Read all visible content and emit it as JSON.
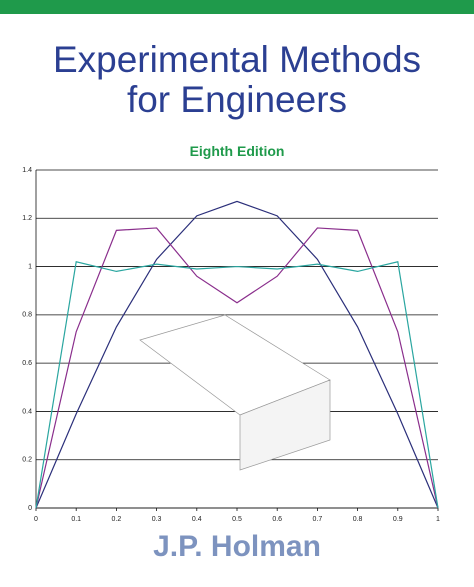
{
  "cover": {
    "title_line1": "Experimental Methods",
    "title_line2": "for Engineers",
    "edition": "Eighth Edition",
    "author": "J.P. Holman"
  },
  "chart_data": {
    "type": "line",
    "x": [
      0,
      0.1,
      0.2,
      0.3,
      0.4,
      0.5,
      0.6,
      0.7,
      0.8,
      0.9,
      1
    ],
    "series": [
      {
        "color": "#2b2f7a",
        "values": [
          0,
          0.39,
          0.75,
          1.03,
          1.21,
          1.27,
          1.21,
          1.03,
          0.75,
          0.39,
          0
        ]
      },
      {
        "color": "#8a2e8c",
        "values": [
          0,
          0.73,
          1.15,
          1.16,
          0.96,
          0.85,
          0.96,
          1.16,
          1.15,
          0.73,
          0
        ]
      },
      {
        "color": "#2aa6a0",
        "values": [
          0,
          1.02,
          0.98,
          1.01,
          0.99,
          1,
          0.99,
          1.01,
          0.98,
          1.02,
          0
        ]
      }
    ],
    "xlim": [
      0,
      1
    ],
    "ylim": [
      0,
      1.4
    ],
    "xticks": [
      0,
      0.1,
      0.2,
      0.3,
      0.4,
      0.5,
      0.6,
      0.7,
      0.8,
      0.9,
      1
    ],
    "yticks": [
      0,
      0.2,
      0.4,
      0.6,
      0.8,
      1,
      1.2,
      1.4
    ],
    "grid": true
  }
}
